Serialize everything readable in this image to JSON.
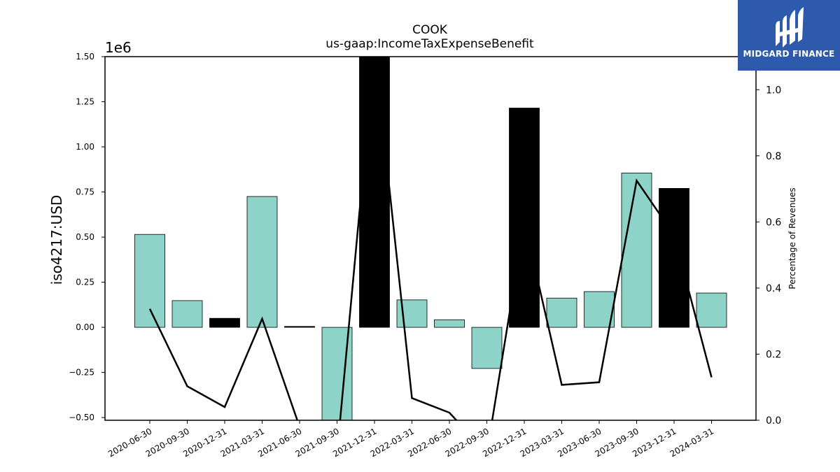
{
  "chart_data": {
    "type": "bar",
    "title": "COOK",
    "subtitle": "us-gaap:IncomeTaxExpenseBenefit",
    "ylabel": "iso4217:USD",
    "y2label": "Percentage of Revenues",
    "y_scale_label": "1e6",
    "ylim": [
      -0.515,
      1.5
    ],
    "y2lim": [
      0.0,
      1.1
    ],
    "y_ticks": [
      "−0.50",
      "−0.25",
      "0.00",
      "0.25",
      "0.50",
      "0.75",
      "1.00",
      "1.25",
      "1.50"
    ],
    "y_tick_values": [
      -0.5,
      -0.25,
      0.0,
      0.25,
      0.5,
      0.75,
      1.0,
      1.25,
      1.5
    ],
    "y2_ticks": [
      "0.0",
      "0.2",
      "0.4",
      "0.6",
      "0.8",
      "1.0"
    ],
    "y2_tick_values": [
      0.0,
      0.2,
      0.4,
      0.6,
      0.8,
      1.0
    ],
    "categories": [
      "2020-06-30",
      "2020-09-30",
      "2020-12-31",
      "2021-03-31",
      "2021-06-30",
      "2021-09-30",
      "2021-12-31",
      "2022-03-31",
      "2022-06-30",
      "2022-09-30",
      "2022-12-31",
      "2023-03-31",
      "2023-06-30",
      "2023-09-30",
      "2023-12-31",
      "2024-03-31"
    ],
    "series": [
      {
        "values": [
          0.515,
          0.148,
          0.05,
          0.725,
          0.005,
          -0.52,
          1.5,
          0.152,
          0.042,
          -0.228,
          1.215,
          0.162,
          0.198,
          0.855,
          0.77,
          0.19
        ],
        "colors": [
          "#8dd3c7",
          "#8dd3c7",
          "#000000",
          "#8dd3c7",
          "#000000",
          "#8dd3c7",
          "#000000",
          "#8dd3c7",
          "#8dd3c7",
          "#8dd3c7",
          "#000000",
          "#8dd3c7",
          "#8dd3c7",
          "#8dd3c7",
          "#000000",
          "#8dd3c7"
        ]
      },
      {
        "axis": "right",
        "type": "line",
        "color": "#000000",
        "values": [
          0.337,
          0.103,
          0.04,
          0.307,
          -0.02,
          -0.1,
          1.12,
          0.067,
          0.023,
          -0.1,
          0.6,
          0.107,
          0.115,
          0.725,
          0.56,
          0.13
        ]
      }
    ],
    "grid": false
  },
  "logo": {
    "text": "MIDGARD FINANCE",
    "background": "#2d5aac"
  }
}
